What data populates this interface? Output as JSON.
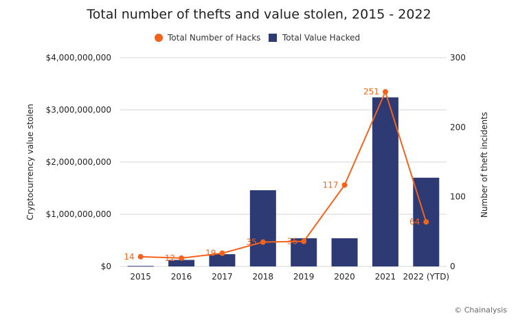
{
  "chart_data": {
    "type": "bar",
    "title": "Total number of thefts and value stolen, 2015 - 2022",
    "categories": [
      "2015",
      "2016",
      "2017",
      "2018",
      "2019",
      "2020",
      "2021",
      "2022 (YTD)"
    ],
    "series": [
      {
        "name": "Total Value Hacked",
        "type": "bar",
        "axis": "left",
        "color": "#2d3a74",
        "values": [
          10000000,
          125000000,
          235000000,
          1460000000,
          540000000,
          540000000,
          3240000000,
          1700000000
        ]
      },
      {
        "name": "Total Number of Hacks",
        "type": "line",
        "axis": "right",
        "color": "#f5631a",
        "values": [
          14,
          12,
          19,
          35,
          36,
          117,
          251,
          64
        ],
        "labels": [
          "14",
          "12",
          "19",
          "35",
          "36",
          "117",
          "251",
          "64"
        ]
      }
    ],
    "y_left": {
      "label": "Cryptocurrency value stolen",
      "range": [
        0,
        4000000000
      ],
      "ticks": [
        0,
        1000000000,
        2000000000,
        3000000000,
        4000000000
      ],
      "tick_labels": [
        "$0",
        "$1,000,000,000",
        "$2,000,000,000",
        "$3,000,000,000",
        "$4,000,000,000"
      ]
    },
    "y_right": {
      "label": "Number of theft incidents",
      "range": [
        0,
        300
      ],
      "ticks": [
        0,
        100,
        200,
        300
      ],
      "tick_labels": [
        "0",
        "100",
        "200",
        "300"
      ]
    },
    "grid": true,
    "legend": "top-center"
  },
  "credit": "© Chainalysis"
}
